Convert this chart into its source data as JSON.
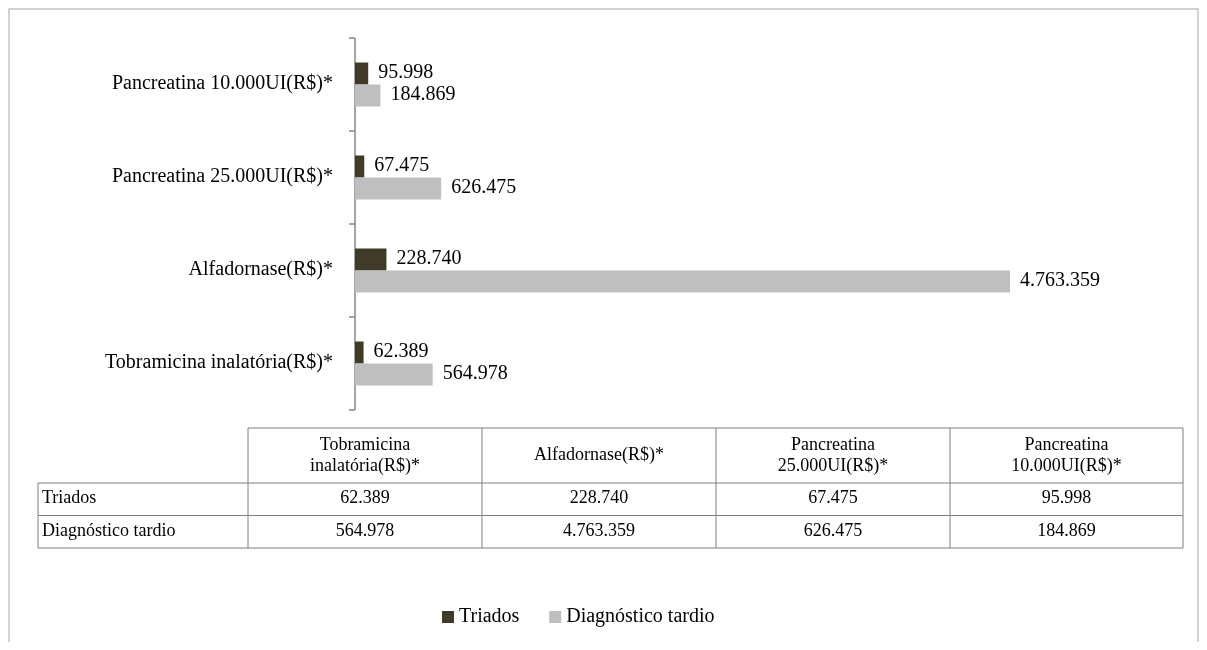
{
  "chart_data": {
    "type": "bar",
    "orientation": "horizontal",
    "categories": [
      "Pancreatina  10.000UI(R$)*",
      "Pancreatina  25.000UI(R$)*",
      "Alfadornase(R$)*",
      "Tobramicina inalatória(R$)*"
    ],
    "series": [
      {
        "name": "Triados",
        "color": "#403b28",
        "values": [
          95998,
          67475,
          228740,
          62389
        ],
        "value_labels": [
          "95.998",
          "67.475",
          "228.740",
          "62.389"
        ]
      },
      {
        "name": "Diagnóstico tardio",
        "color": "#bfbfbf",
        "values": [
          184869,
          626475,
          4763359,
          564978
        ],
        "value_labels": [
          "184.869",
          "626.475",
          "4.763.359",
          "564.978"
        ]
      }
    ],
    "legend": "bottom"
  }
}
